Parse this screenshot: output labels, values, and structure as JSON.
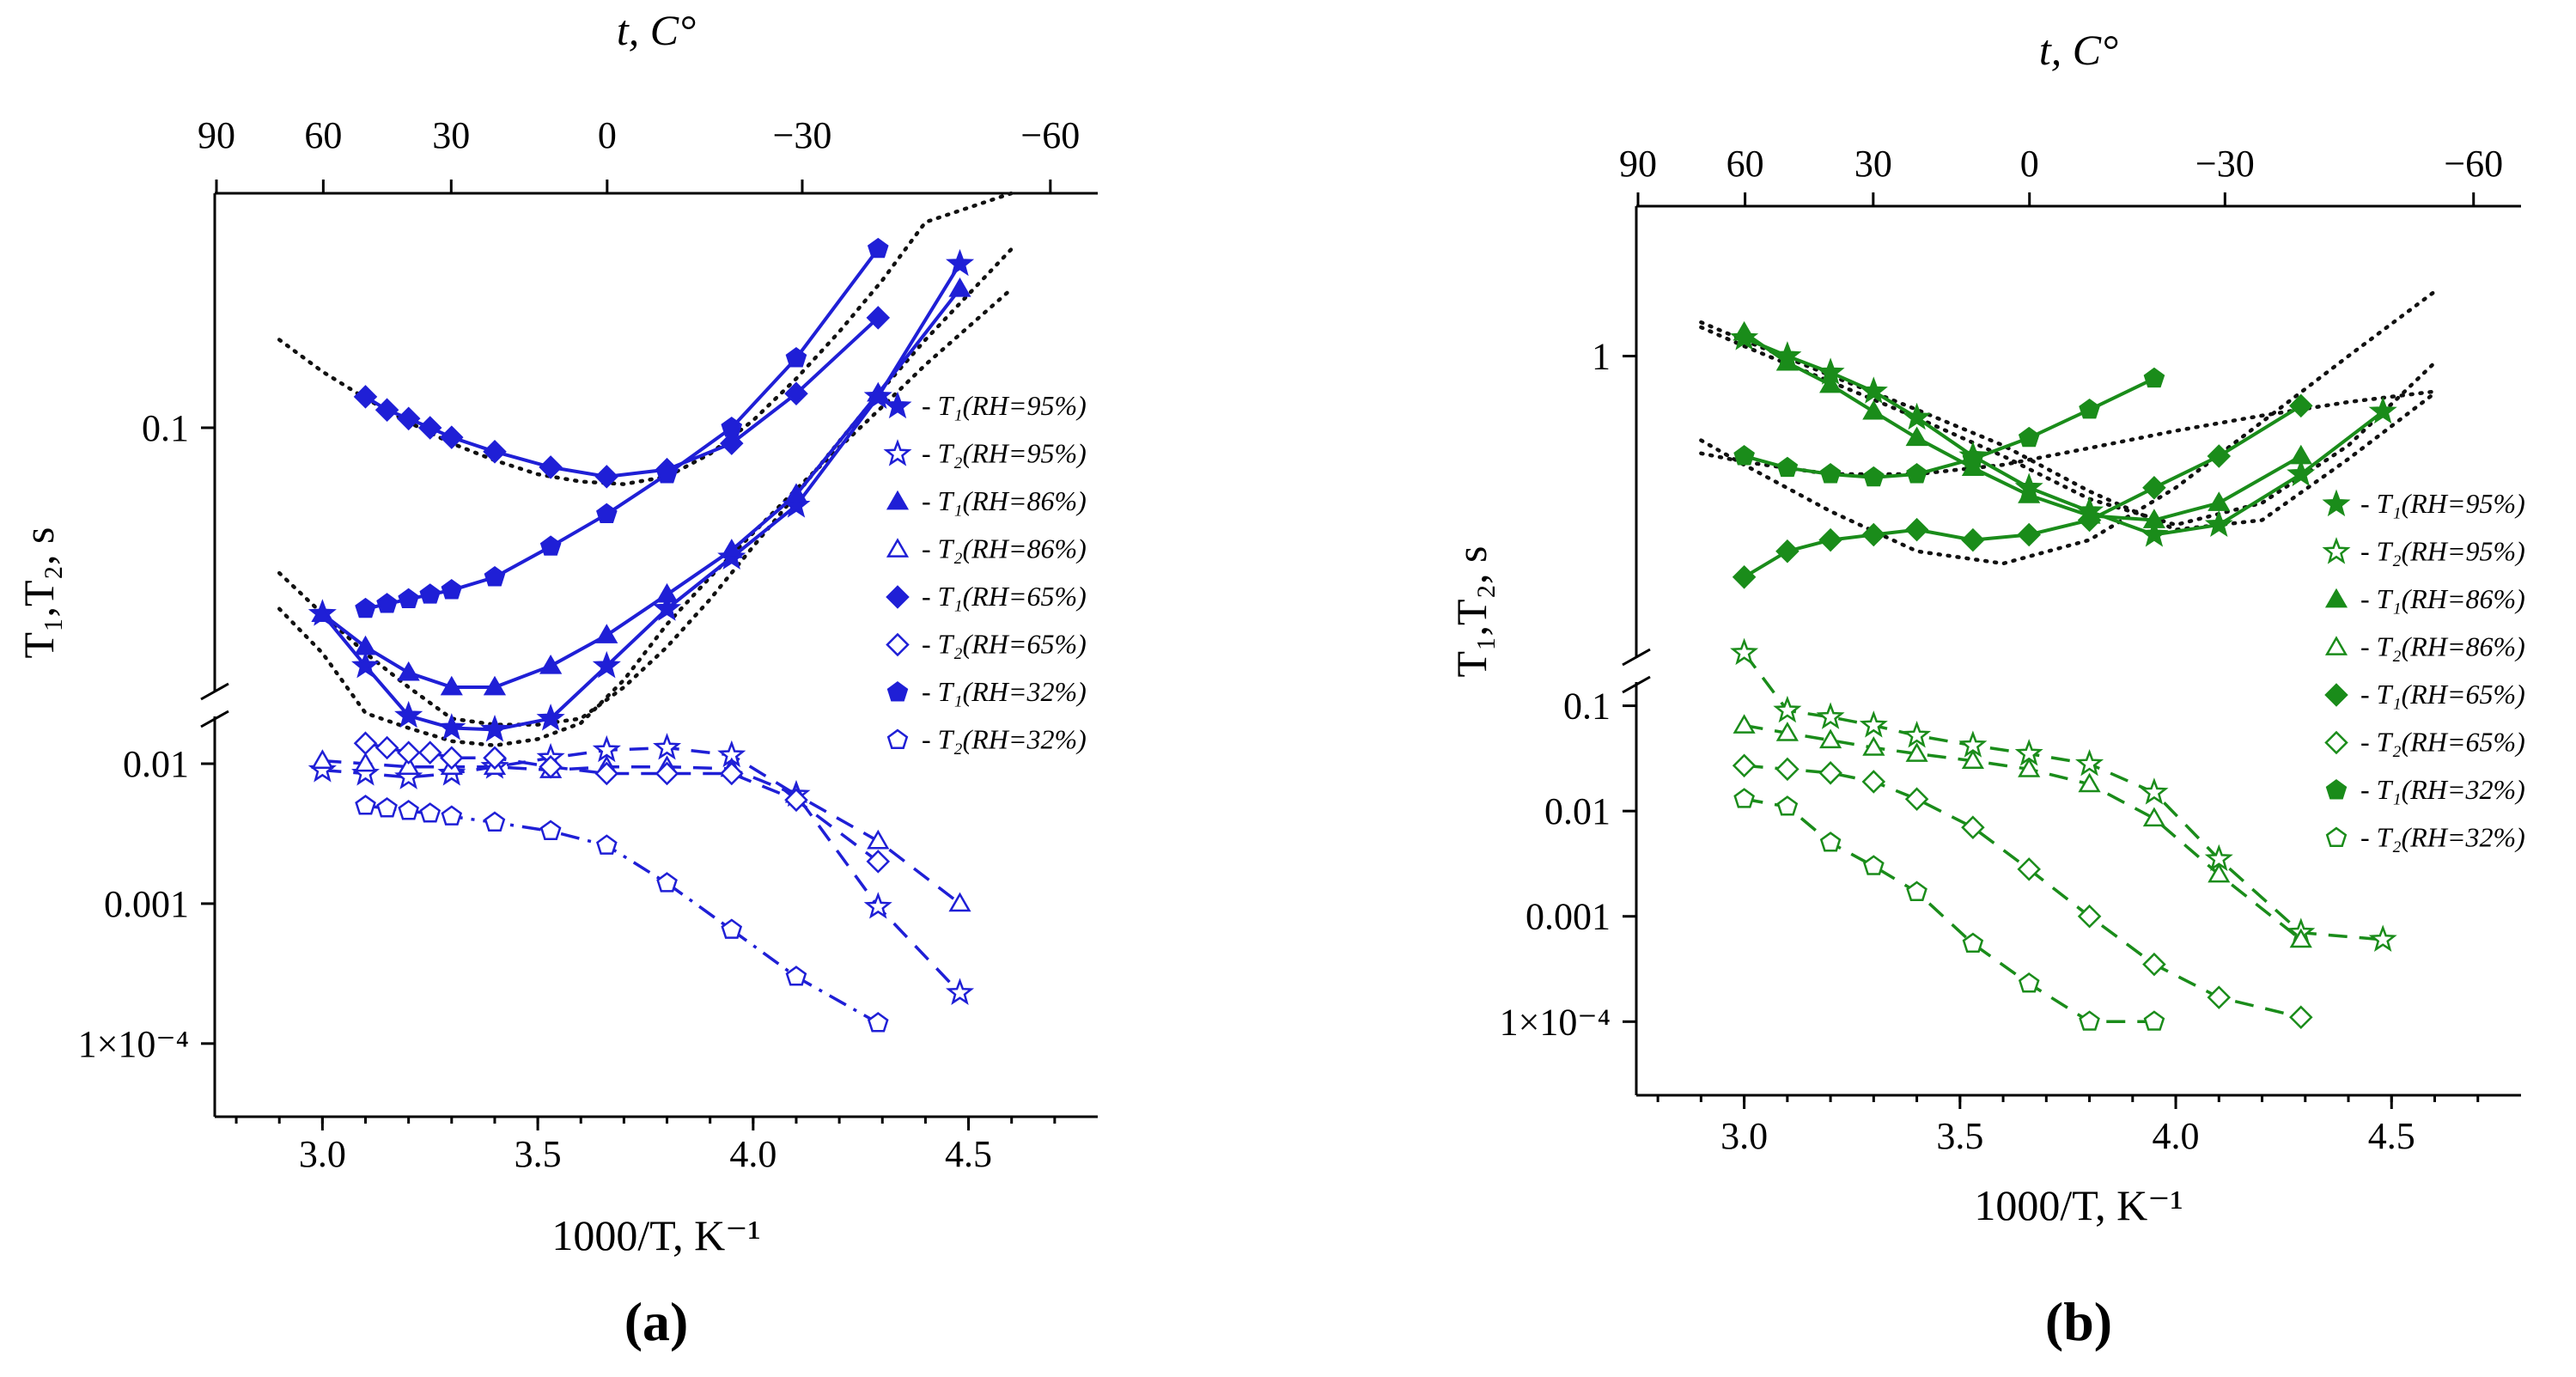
{
  "chart_data": [
    {
      "id": "a",
      "type": "line",
      "panel_label": "(a)",
      "color": "#1f1fd6",
      "xlabel": "1000/T, K⁻¹",
      "ylabel": "T₁,T₂, s",
      "top_xlabel": "t, C°",
      "xlim": [
        2.75,
        4.8
      ],
      "x_ticks": [
        {
          "v": 3.0,
          "label": "3.0"
        },
        {
          "v": 3.5,
          "label": "3.5"
        },
        {
          "v": 4.0,
          "label": "4.0"
        },
        {
          "v": 4.5,
          "label": "4.5"
        }
      ],
      "top_ticks": [
        {
          "v": 2.754,
          "label": "90"
        },
        {
          "v": 3.002,
          "label": "60"
        },
        {
          "v": 3.299,
          "label": "30"
        },
        {
          "v": 3.661,
          "label": "0"
        },
        {
          "v": 4.114,
          "label": "−30"
        },
        {
          "v": 4.69,
          "label": "−60"
        }
      ],
      "y_upper_range": [
        0.025,
        0.35
      ],
      "y_lower_range": [
        3e-05,
        0.02
      ],
      "y_upper_ticks": [
        {
          "v": 0.1,
          "label": "0.1"
        }
      ],
      "y_lower_ticks": [
        {
          "v": 0.01,
          "label": "0.01"
        },
        {
          "v": 0.001,
          "label": "0.001"
        },
        {
          "v": 0.0001,
          "label": "1×10⁻⁴"
        }
      ],
      "series": [
        {
          "name": "T1(RH=95%)",
          "legend": "- T₁(RH=95%)",
          "marker": "star",
          "filled": true,
          "dash": "solid",
          "x": [
            3.0,
            3.1,
            3.2,
            3.3,
            3.4,
            3.53,
            3.66,
            3.8,
            3.95,
            4.1,
            4.29,
            4.48
          ],
          "y": [
            0.037,
            0.028,
            0.022,
            0.018,
            0.0175,
            0.021,
            0.028,
            0.038,
            0.05,
            0.066,
            0.118,
            0.24
          ]
        },
        {
          "name": "T2(RH=95%)",
          "legend": "- T₂(RH=95%)",
          "marker": "star",
          "filled": false,
          "dash": "dashed",
          "x": [
            3.0,
            3.1,
            3.2,
            3.3,
            3.4,
            3.53,
            3.66,
            3.8,
            3.95,
            4.1,
            4.29,
            4.48
          ],
          "y": [
            0.009,
            0.0085,
            0.008,
            0.0085,
            0.0095,
            0.011,
            0.0125,
            0.013,
            0.0115,
            0.006,
            0.00095,
            0.00023
          ]
        },
        {
          "name": "T1(RH=86%)",
          "legend": "- T₁(RH=86%)",
          "marker": "triangle",
          "filled": true,
          "dash": "solid",
          "x": [
            3.0,
            3.1,
            3.2,
            3.3,
            3.4,
            3.53,
            3.66,
            3.8,
            3.95,
            4.1,
            4.29,
            4.48
          ],
          "y": [
            0.037,
            0.031,
            0.027,
            0.025,
            0.025,
            0.028,
            0.033,
            0.041,
            0.052,
            0.07,
            0.12,
            0.21
          ]
        },
        {
          "name": "T2(RH=86%)",
          "legend": "- T₂(RH=86%)",
          "marker": "triangle",
          "filled": false,
          "dash": "dashed",
          "x": [
            3.0,
            3.1,
            3.2,
            3.3,
            3.4,
            3.53,
            3.66,
            3.8,
            3.95,
            4.1,
            4.29,
            4.48
          ],
          "y": [
            0.0105,
            0.01,
            0.0095,
            0.0095,
            0.0095,
            0.009,
            0.0095,
            0.0095,
            0.0092,
            0.006,
            0.0028,
            0.001
          ]
        },
        {
          "name": "T1(RH=65%)",
          "legend": "- T₁(RH=65%)",
          "marker": "diamond",
          "filled": true,
          "dash": "solid",
          "x": [
            3.1,
            3.15,
            3.2,
            3.25,
            3.3,
            3.4,
            3.53,
            3.66,
            3.8,
            3.95,
            4.1,
            4.29
          ],
          "y": [
            0.118,
            0.11,
            0.105,
            0.1,
            0.095,
            0.088,
            0.081,
            0.077,
            0.08,
            0.092,
            0.12,
            0.18
          ]
        },
        {
          "name": "T2(RH=65%)",
          "legend": "- T₂(RH=65%)",
          "marker": "diamond",
          "filled": false,
          "dash": "dashed",
          "x": [
            3.1,
            3.15,
            3.2,
            3.25,
            3.3,
            3.4,
            3.53,
            3.66,
            3.8,
            3.95,
            4.1,
            4.29
          ],
          "y": [
            0.014,
            0.013,
            0.012,
            0.012,
            0.011,
            0.011,
            0.0095,
            0.0085,
            0.0085,
            0.0085,
            0.0055,
            0.002
          ]
        },
        {
          "name": "T1(RH=32%)",
          "legend": "- T₁(RH=32%)",
          "marker": "pentagon",
          "filled": true,
          "dash": "solid",
          "x": [
            3.1,
            3.15,
            3.2,
            3.25,
            3.3,
            3.4,
            3.53,
            3.66,
            3.8,
            3.95,
            4.1,
            4.29
          ],
          "y": [
            0.038,
            0.039,
            0.04,
            0.041,
            0.042,
            0.045,
            0.053,
            0.063,
            0.078,
            0.1,
            0.145,
            0.26
          ]
        },
        {
          "name": "T2(RH=32%)",
          "legend": "- T₂(RH=32%)",
          "marker": "pentagon",
          "filled": false,
          "dash": "dashdot",
          "x": [
            3.1,
            3.15,
            3.2,
            3.25,
            3.3,
            3.4,
            3.53,
            3.66,
            3.8,
            3.95,
            4.1,
            4.29
          ],
          "y": [
            0.005,
            0.0048,
            0.0046,
            0.0044,
            0.0042,
            0.0038,
            0.0033,
            0.0026,
            0.0014,
            0.00065,
            0.0003,
            0.00014
          ]
        }
      ],
      "fits": [
        {
          "x": [
            2.9,
            3.0,
            3.1,
            3.2,
            3.3,
            3.4,
            3.5,
            3.6,
            3.7,
            3.8,
            3.9,
            4.0,
            4.1,
            4.2,
            4.3,
            4.4,
            4.6
          ],
          "y": [
            0.16,
            0.135,
            0.117,
            0.103,
            0.092,
            0.084,
            0.078,
            0.075,
            0.074,
            0.077,
            0.087,
            0.104,
            0.13,
            0.167,
            0.22,
            0.3,
            0.35
          ]
        },
        {
          "x": [
            2.9,
            3.0,
            3.1,
            3.2,
            3.3,
            3.4,
            3.5,
            3.6,
            3.7,
            3.8,
            3.9,
            4.0,
            4.1,
            4.2,
            4.3,
            4.4,
            4.6
          ],
          "y": [
            0.046,
            0.037,
            0.03,
            0.025,
            0.021,
            0.019,
            0.019,
            0.021,
            0.025,
            0.031,
            0.04,
            0.053,
            0.07,
            0.093,
            0.123,
            0.16,
            0.26
          ]
        },
        {
          "x": [
            2.9,
            3.0,
            3.1,
            3.2,
            3.3,
            3.4,
            3.5,
            3.6,
            3.7,
            3.8,
            3.9,
            4.0,
            4.1,
            4.2,
            4.3,
            4.4,
            4.6
          ],
          "y": [
            0.038,
            0.03,
            0.023,
            0.018,
            0.0145,
            0.0135,
            0.015,
            0.0195,
            0.026,
            0.035,
            0.045,
            0.057,
            0.072,
            0.09,
            0.112,
            0.14,
            0.21
          ]
        }
      ],
      "axis_break_labels": [
        "",
        ""
      ]
    },
    {
      "id": "b",
      "type": "line",
      "panel_label": "(b)",
      "color": "#1a8c1a",
      "xlabel": "1000/T, K⁻¹",
      "ylabel": "T₁,T₂, s",
      "top_xlabel": "t, C°",
      "xlim": [
        2.75,
        4.8
      ],
      "x_ticks": [
        {
          "v": 3.0,
          "label": "3.0"
        },
        {
          "v": 3.5,
          "label": "3.5"
        },
        {
          "v": 4.0,
          "label": "4.0"
        },
        {
          "v": 4.5,
          "label": "4.5"
        }
      ],
      "top_ticks": [
        {
          "v": 2.754,
          "label": "90"
        },
        {
          "v": 3.002,
          "label": "60"
        },
        {
          "v": 3.299,
          "label": "30"
        },
        {
          "v": 3.661,
          "label": "0"
        },
        {
          "v": 4.114,
          "label": "−30"
        },
        {
          "v": 4.69,
          "label": "−60"
        }
      ],
      "y_upper_range": [
        0.1,
        3.2
      ],
      "y_lower_range": [
        2e-05,
        0.15
      ],
      "y_upper_ticks": [
        {
          "v": 1,
          "label": "1"
        }
      ],
      "y_lower_ticks": [
        {
          "v": 0.1,
          "label": "0.1"
        },
        {
          "v": 0.01,
          "label": "0.01"
        },
        {
          "v": 0.001,
          "label": "0.001"
        },
        {
          "v": 0.0001,
          "label": "1×10⁻⁴"
        }
      ],
      "series": [
        {
          "name": "T1(RH=95%)",
          "legend": "- T₁(RH=95%)",
          "marker": "star",
          "filled": true,
          "dash": "solid",
          "x": [
            3.0,
            3.1,
            3.2,
            3.3,
            3.4,
            3.53,
            3.66,
            3.8,
            3.95,
            4.1,
            4.29,
            4.48
          ],
          "y": [
            1.15,
            1.0,
            0.88,
            0.76,
            0.62,
            0.46,
            0.36,
            0.3,
            0.25,
            0.27,
            0.4,
            0.65
          ]
        },
        {
          "name": "T2(RH=95%)",
          "legend": "- T₂(RH=95%)",
          "marker": "star",
          "filled": false,
          "dash": "dashed",
          "x": [
            3.0,
            3.1,
            3.2,
            3.3,
            3.4,
            3.53,
            3.66,
            3.8,
            3.95,
            4.1,
            4.29,
            4.48
          ],
          "y": [
            0.1,
            0.09,
            0.078,
            0.065,
            0.052,
            0.042,
            0.035,
            0.028,
            0.015,
            0.0035,
            0.0007,
            0.0006
          ]
        },
        {
          "name": "T1(RH=86%)",
          "legend": "- T₁(RH=86%)",
          "marker": "triangle",
          "filled": true,
          "dash": "solid",
          "x": [
            3.0,
            3.1,
            3.2,
            3.3,
            3.4,
            3.53,
            3.66,
            3.8,
            3.95,
            4.1,
            4.29
          ],
          "y": [
            1.2,
            0.95,
            0.8,
            0.65,
            0.53,
            0.42,
            0.34,
            0.29,
            0.28,
            0.32,
            0.46
          ]
        },
        {
          "name": "T2(RH=86%)",
          "legend": "- T₂(RH=86%)",
          "marker": "triangle",
          "filled": false,
          "dash": "dashed",
          "x": [
            3.0,
            3.1,
            3.2,
            3.3,
            3.4,
            3.53,
            3.66,
            3.8,
            3.95,
            4.1,
            4.29
          ],
          "y": [
            0.065,
            0.055,
            0.047,
            0.04,
            0.035,
            0.03,
            0.025,
            0.018,
            0.0085,
            0.0025,
            0.0006
          ]
        },
        {
          "name": "T1(RH=65%)",
          "legend": "- T₁(RH=65%)",
          "marker": "diamond",
          "filled": true,
          "dash": "solid",
          "x": [
            3.0,
            3.1,
            3.2,
            3.3,
            3.4,
            3.53,
            3.66,
            3.8,
            3.95,
            4.1,
            4.29
          ],
          "y": [
            0.18,
            0.22,
            0.24,
            0.25,
            0.26,
            0.24,
            0.25,
            0.28,
            0.36,
            0.46,
            0.68
          ]
        },
        {
          "name": "T2(RH=65%)",
          "legend": "- T₂(RH=65%)",
          "marker": "diamond",
          "filled": false,
          "dash": "dashed",
          "x": [
            3.0,
            3.1,
            3.2,
            3.3,
            3.4,
            3.53,
            3.66,
            3.8,
            3.95,
            4.1,
            4.29
          ],
          "y": [
            0.027,
            0.025,
            0.023,
            0.019,
            0.013,
            0.007,
            0.0028,
            0.001,
            0.00035,
            0.00017,
            0.00011
          ]
        },
        {
          "name": "T1(RH=32%)",
          "legend": "- T₁(RH=32%)",
          "marker": "pentagon",
          "filled": true,
          "dash": "solid",
          "x": [
            3.0,
            3.1,
            3.2,
            3.3,
            3.4,
            3.53,
            3.66,
            3.8,
            3.95
          ],
          "y": [
            0.46,
            0.42,
            0.4,
            0.39,
            0.4,
            0.45,
            0.53,
            0.66,
            0.84
          ]
        },
        {
          "name": "T2(RH=32%)",
          "legend": "- T₂(RH=32%)",
          "marker": "pentagon",
          "filled": false,
          "dash": "dashed",
          "x": [
            3.0,
            3.1,
            3.2,
            3.3,
            3.4,
            3.53,
            3.66,
            3.8,
            3.95
          ],
          "y": [
            0.013,
            0.011,
            0.005,
            0.003,
            0.0017,
            0.00055,
            0.00023,
            0.0001,
            0.0001
          ]
        }
      ],
      "fits": [
        {
          "x": [
            2.9,
            3.0,
            3.2,
            3.4,
            3.6,
            3.8,
            4.0,
            4.2,
            4.4,
            4.6
          ],
          "y": [
            1.3,
            1.13,
            0.86,
            0.66,
            0.5,
            0.35,
            0.26,
            0.28,
            0.45,
            0.75
          ]
        },
        {
          "x": [
            2.9,
            3.0,
            3.2,
            3.4,
            3.6,
            3.8,
            4.0,
            4.2,
            4.4,
            4.6
          ],
          "y": [
            1.25,
            1.08,
            0.82,
            0.62,
            0.46,
            0.33,
            0.27,
            0.32,
            0.5,
            0.95
          ]
        },
        {
          "x": [
            2.9,
            3.0,
            3.2,
            3.4,
            3.6,
            3.8,
            4.0,
            4.2,
            4.4,
            4.6
          ],
          "y": [
            0.52,
            0.43,
            0.3,
            0.22,
            0.2,
            0.24,
            0.36,
            0.6,
            1.0,
            1.65
          ]
        },
        {
          "x": [
            2.9,
            3.0,
            3.2,
            3.4,
            3.6,
            3.8,
            4.0,
            4.2,
            4.4,
            4.6
          ],
          "y": [
            0.47,
            0.44,
            0.4,
            0.4,
            0.43,
            0.49,
            0.56,
            0.63,
            0.7,
            0.76
          ]
        }
      ],
      "axis_break_labels": [
        "",
        ""
      ]
    }
  ]
}
